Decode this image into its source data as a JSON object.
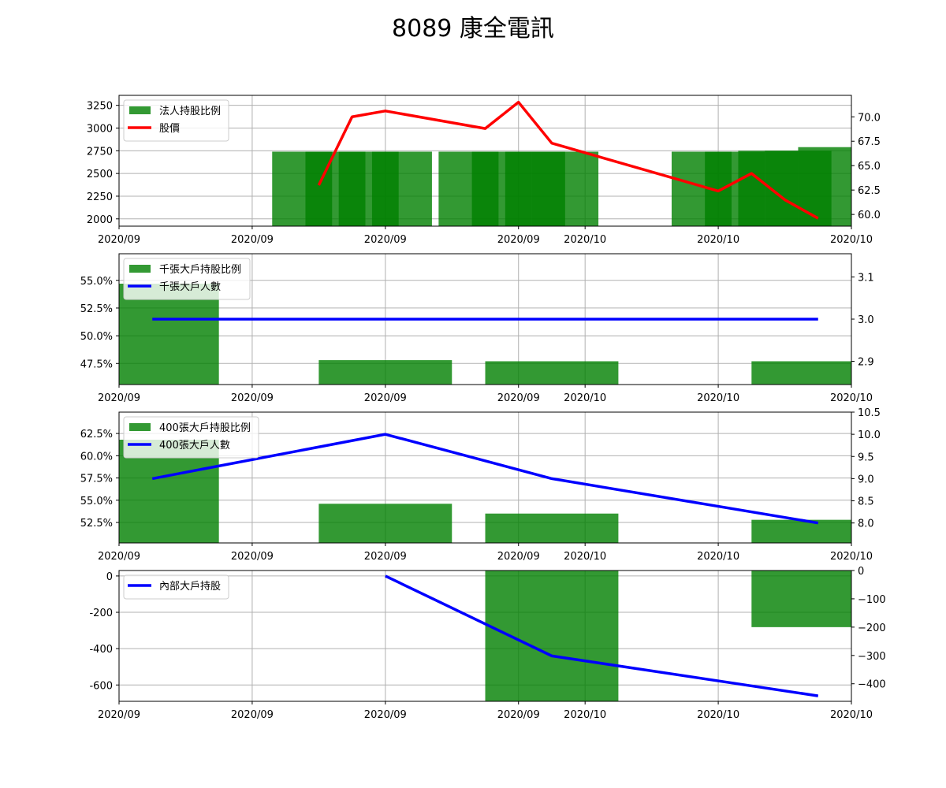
{
  "title": "8089 康全電訊",
  "x_tick_labels": [
    "2020/09",
    "2020/09",
    "2020/09",
    "2020/09",
    "2020/10",
    "2020/10",
    "2020/10"
  ],
  "x_ticks_days": [
    0,
    4,
    8,
    12,
    14,
    18,
    22
  ],
  "colors": {
    "bar": "#008000",
    "price": "#ff0000",
    "people": "#0000ff",
    "grid": "#b0b0b0"
  },
  "chart_data": [
    {
      "type": "bar+line",
      "legend": [
        "法人持股比例",
        "股價"
      ],
      "xlim": [
        0,
        22
      ],
      "ylim_left": [
        1920,
        3360
      ],
      "ylim_right": [
        58.8,
        72.2
      ],
      "yticks_left": [
        2000,
        2250,
        2500,
        2750,
        3000,
        3250
      ],
      "yticks_left_labels": [
        "2000",
        "2250",
        "2500",
        "2750",
        "3000",
        "3250"
      ],
      "yticks_right": [
        60.0,
        62.5,
        65.0,
        67.5,
        70.0
      ],
      "yticks_right_labels": [
        "60.0",
        "62.5",
        "65.0",
        "67.5",
        "70.0"
      ],
      "bars": [
        {
          "start": 4.6,
          "end": 6.4,
          "value": 2740
        },
        {
          "start": 5.6,
          "end": 7.4,
          "value": 2740
        },
        {
          "start": 6.6,
          "end": 8.4,
          "value": 2740
        },
        {
          "start": 7.6,
          "end": 9.4,
          "value": 2740
        },
        {
          "start": 9.6,
          "end": 11.4,
          "value": 2740
        },
        {
          "start": 10.6,
          "end": 12.4,
          "value": 2740
        },
        {
          "start": 11.6,
          "end": 13.4,
          "value": 2740
        },
        {
          "start": 12.4,
          "end": 14.4,
          "value": 2740
        },
        {
          "start": 16.6,
          "end": 18.4,
          "value": 2740
        },
        {
          "start": 17.6,
          "end": 19.4,
          "value": 2740
        },
        {
          "start": 18.6,
          "end": 20.4,
          "value": 2750
        },
        {
          "start": 19.4,
          "end": 21.4,
          "value": 2750
        },
        {
          "start": 20.4,
          "end": 22.4,
          "value": 2790
        }
      ],
      "price": {
        "x": [
          6,
          7,
          8,
          11,
          12,
          13,
          18,
          19,
          20,
          21
        ],
        "y": [
          63.0,
          70.0,
          70.6,
          68.8,
          71.5,
          67.3,
          62.4,
          64.2,
          61.5,
          59.6
        ]
      }
    },
    {
      "type": "bar+line",
      "legend": [
        "千張大戶持股比例",
        "千張大戶人數"
      ],
      "xlim": [
        0,
        22
      ],
      "ylim_left": [
        45.6,
        57.4
      ],
      "ylim_right": [
        2.845,
        3.155
      ],
      "yticks_left": [
        47.5,
        50.0,
        52.5,
        55.0
      ],
      "yticks_left_labels": [
        "47.5%",
        "50.0%",
        "52.5%",
        "55.0%"
      ],
      "yticks_right": [
        2.9,
        3.0,
        3.1
      ],
      "yticks_right_labels": [
        "2.9",
        "3.0",
        "3.1"
      ],
      "bars": [
        {
          "start": -2.0,
          "end": 3.0,
          "value": 54.7
        },
        {
          "start": 6.0,
          "end": 10.0,
          "value": 47.8
        },
        {
          "start": 11.0,
          "end": 15.0,
          "value": 47.7
        },
        {
          "start": 19.0,
          "end": 23.0,
          "value": 47.7
        }
      ],
      "people": {
        "x": [
          1,
          8,
          13,
          21
        ],
        "y": [
          3.0,
          3.0,
          3.0,
          3.0
        ]
      }
    },
    {
      "type": "bar+line",
      "legend": [
        "400張大戶持股比例",
        "400張大戶人數"
      ],
      "xlim": [
        0,
        22
      ],
      "ylim_left": [
        50.2,
        64.9
      ],
      "ylim_right": [
        7.55,
        10.5
      ],
      "yticks_left": [
        52.5,
        55.0,
        57.5,
        60.0,
        62.5
      ],
      "yticks_left_labels": [
        "52.5%",
        "55.0%",
        "57.5%",
        "60.0%",
        "62.5%"
      ],
      "yticks_right": [
        8.0,
        8.5,
        9.0,
        9.5,
        10.0,
        10.5
      ],
      "yticks_right_labels": [
        "8.0",
        "8.5",
        "9.0",
        "9.5",
        "10.0",
        "10.5"
      ],
      "bars": [
        {
          "start": -2.0,
          "end": 3.0,
          "value": 61.8
        },
        {
          "start": 6.0,
          "end": 10.0,
          "value": 54.6
        },
        {
          "start": 11.0,
          "end": 15.0,
          "value": 53.5
        },
        {
          "start": 19.0,
          "end": 23.0,
          "value": 52.8
        }
      ],
      "people": {
        "x": [
          1,
          8,
          13,
          21
        ],
        "y": [
          9.0,
          10.0,
          9.0,
          8.0
        ]
      }
    },
    {
      "type": "bar+line",
      "legend": [
        "內部大戶持股"
      ],
      "xlim": [
        0,
        22
      ],
      "ylim_left": [
        -690,
        30
      ],
      "ylim_right": [
        -462,
        0
      ],
      "yticks_left": [
        -600,
        -400,
        -200,
        0
      ],
      "yticks_left_labels": [
        "-600",
        "-400",
        "-200",
        "0"
      ],
      "yticks_right": [
        -400,
        -300,
        -200,
        -100,
        0
      ],
      "yticks_right_labels": [
        "−400",
        "−300",
        "−200",
        "−100",
        "0"
      ],
      "bars": [
        {
          "start": 11.0,
          "end": 15.0,
          "value": -700
        },
        {
          "start": 19.0,
          "end": 23.0,
          "value": -200
        }
      ],
      "bars_axis": "right",
      "people": {
        "x": [
          8,
          13,
          21
        ],
        "y": [
          0,
          -440,
          -660
        ]
      },
      "people_axis": "left"
    }
  ]
}
